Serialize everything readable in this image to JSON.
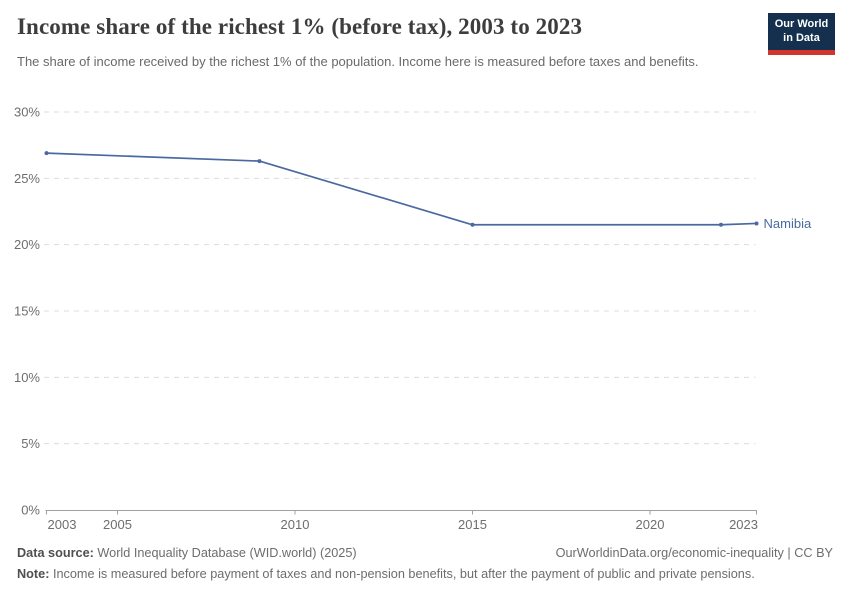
{
  "header": {
    "logo_line1": "Our World",
    "logo_line2": "in Data"
  },
  "chart_data": {
    "type": "line",
    "title": "Income share of the richest 1% (before tax), 2003 to 2023",
    "subtitle": "The share of income received by the richest 1% of the population. Income here is measured before taxes and benefits.",
    "xlabel": "",
    "ylabel": "",
    "entity_label": "Namibia",
    "series": [
      {
        "name": "Namibia",
        "color": "#4a69a0",
        "points": [
          [
            2003,
            26.9
          ],
          [
            2009,
            26.3
          ],
          [
            2015,
            21.5
          ],
          [
            2022,
            21.5
          ],
          [
            2023,
            21.6
          ]
        ]
      }
    ],
    "xlim": [
      2003,
      2023
    ],
    "ylim": [
      0,
      30
    ],
    "xticks": [
      2003,
      2005,
      2010,
      2015,
      2020,
      2023
    ],
    "yticks": [
      0,
      5,
      10,
      15,
      20,
      25,
      30
    ],
    "y_tick_suffix": "%",
    "grid": "horizontal-dashed",
    "legend_position": "line-end-label",
    "colors": {
      "line": "#4a69a0",
      "gridline": "#dcdcdc",
      "axis": "#a0a0a0",
      "tick_label": "#6e6e6e"
    }
  },
  "footer": {
    "source_label": "Data source:",
    "source_text": "World Inequality Database (WID.world) (2025)",
    "credit": "OurWorldinData.org/economic-inequality | CC BY",
    "note_label": "Note:",
    "note_text": "Income is measured before payment of taxes and non-pension benefits, but after the payment of public and private pensions."
  }
}
